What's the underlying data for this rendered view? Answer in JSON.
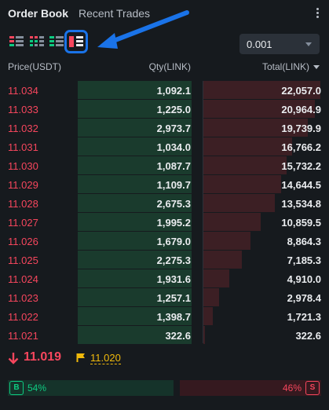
{
  "tabs": [
    {
      "label": "Order Book",
      "active": true
    },
    {
      "label": "Recent Trades",
      "active": false
    }
  ],
  "view_modes": [
    {
      "icon": "orderbook-both-icon",
      "selected": false
    },
    {
      "icon": "orderbook-grid-icon",
      "selected": false
    },
    {
      "icon": "orderbook-bids-icon",
      "selected": false
    },
    {
      "icon": "orderbook-asks-icon",
      "selected": true
    }
  ],
  "precision": {
    "value": "0.001"
  },
  "columns": {
    "price": "Price(USDT)",
    "qty": "Qty(LINK)",
    "total": "Total(LINK)"
  },
  "asks": [
    {
      "price": "11.034",
      "qty": "1,092.1",
      "total": "22,057.0",
      "total_fraction": 1.0
    },
    {
      "price": "11.033",
      "qty": "1,225.0",
      "total": "20,964.9",
      "total_fraction": 0.95
    },
    {
      "price": "11.032",
      "qty": "2,973.7",
      "total": "19,739.9",
      "total_fraction": 0.895
    },
    {
      "price": "11.031",
      "qty": "1,034.0",
      "total": "16,766.2",
      "total_fraction": 0.76
    },
    {
      "price": "11.030",
      "qty": "1,087.7",
      "total": "15,732.2",
      "total_fraction": 0.713
    },
    {
      "price": "11.029",
      "qty": "1,109.7",
      "total": "14,644.5",
      "total_fraction": 0.664
    },
    {
      "price": "11.028",
      "qty": "2,675.3",
      "total": "13,534.8",
      "total_fraction": 0.614
    },
    {
      "price": "11.027",
      "qty": "1,995.2",
      "total": "10,859.5",
      "total_fraction": 0.492
    },
    {
      "price": "11.026",
      "qty": "1,679.0",
      "total": "8,864.3",
      "total_fraction": 0.402
    },
    {
      "price": "11.025",
      "qty": "2,275.3",
      "total": "7,185.3",
      "total_fraction": 0.326
    },
    {
      "price": "11.024",
      "qty": "1,931.6",
      "total": "4,910.0",
      "total_fraction": 0.223
    },
    {
      "price": "11.023",
      "qty": "1,257.1",
      "total": "2,978.4",
      "total_fraction": 0.135
    },
    {
      "price": "11.022",
      "qty": "1,398.7",
      "total": "1,721.3",
      "total_fraction": 0.078
    },
    {
      "price": "11.021",
      "qty": "322.6",
      "total": "322.6",
      "total_fraction": 0.015
    }
  ],
  "last_price": {
    "value": "11.019",
    "mark": "11.020"
  },
  "ratio": {
    "buy_label": "B",
    "buy_pct": "54%",
    "buy_fraction": 0.54,
    "sell_label": "S",
    "sell_pct": "46%"
  },
  "colors": {
    "ask": "#f6465d",
    "bid": "#0ecb81",
    "mark": "#f0b90b",
    "highlight": "#1a73e8"
  }
}
